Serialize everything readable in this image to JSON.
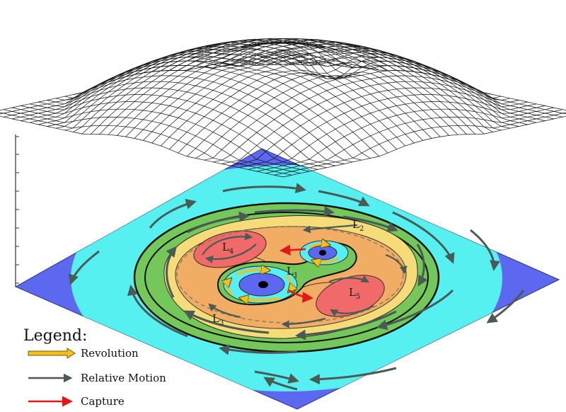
{
  "colors": {
    "outer_blue": "#5c68f0",
    "cyan": "#56f0f0",
    "green": "#74c85a",
    "yellow": "#f6dc78",
    "orange": "#f2ad64",
    "red": "#f06a6a",
    "arrow_gray": "#4a5a54",
    "revolution_gold": "#f0c020",
    "capture_red": "#e01818"
  },
  "labels": {
    "L1": {
      "main": "L",
      "sub": "1"
    },
    "L2": {
      "main": "L",
      "sub": "2"
    },
    "L3": {
      "main": "L",
      "sub": "3"
    },
    "L4": {
      "main": "L",
      "sub": "4"
    },
    "L5": {
      "main": "L",
      "sub": "5"
    }
  },
  "legend": {
    "title": "Legend:",
    "items": [
      {
        "label": "Revolution",
        "icon": "gold-double-arrow"
      },
      {
        "label": "Relative Motion",
        "icon": "gray-arrow"
      },
      {
        "label": "Capture",
        "icon": "red-arrow"
      }
    ]
  }
}
